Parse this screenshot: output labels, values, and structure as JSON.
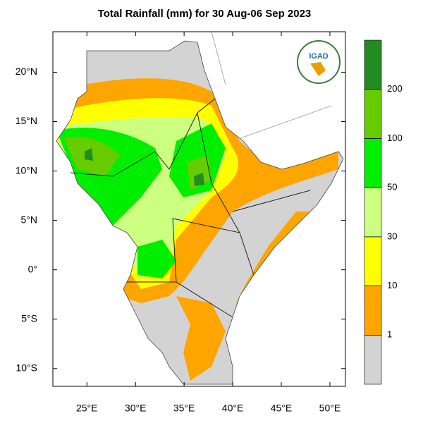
{
  "title": "Total Rainfall (mm) for 30 Aug-06 Sep 2023",
  "logo": {
    "text": "IGAD"
  },
  "map": {
    "xlim": [
      21.5,
      51.6
    ],
    "ylim": [
      -11.8,
      24.1
    ],
    "xticks": [
      {
        "value": 25,
        "label": "25°E"
      },
      {
        "value": 30,
        "label": "30°E"
      },
      {
        "value": 35,
        "label": "35°E"
      },
      {
        "value": 40,
        "label": "40°E"
      },
      {
        "value": 45,
        "label": "45°E"
      },
      {
        "value": 50,
        "label": "50°E"
      }
    ],
    "yticks": [
      {
        "value": 20,
        "label": "20°N"
      },
      {
        "value": 15,
        "label": "15°N"
      },
      {
        "value": 10,
        "label": "10°N"
      },
      {
        "value": 5,
        "label": "5°N"
      },
      {
        "value": 0,
        "label": "0°"
      },
      {
        "value": -5,
        "label": "5°S"
      },
      {
        "value": -10,
        "label": "10°S"
      }
    ]
  },
  "colorbar": {
    "levels": [
      1,
      10,
      30,
      50,
      100,
      200
    ],
    "colors": [
      "#d3d3d3",
      "#ffa500",
      "#ffff00",
      "#ccff80",
      "#00ee00",
      "#66cc00",
      "#228b22"
    ]
  }
}
